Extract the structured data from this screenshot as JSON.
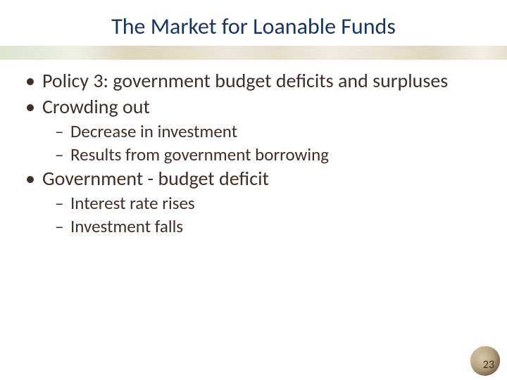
{
  "title": "The Market for Loanable Funds",
  "colors": {
    "title": "#17365d",
    "body": "#3d3028",
    "background": "#ffffff"
  },
  "typography": {
    "title_fontsize": 32,
    "l1_fontsize": 28,
    "l2_fontsize": 25,
    "font_family": "Calibri"
  },
  "bullets": [
    {
      "level": 1,
      "text": "Policy 3: government budget deficits and surpluses"
    },
    {
      "level": 1,
      "text": "Crowding out"
    },
    {
      "level": 2,
      "text": "Decrease in investment"
    },
    {
      "level": 2,
      "text": "Results from government borrowing"
    },
    {
      "level": 1,
      "text": "Government - budget deficit"
    },
    {
      "level": 2,
      "text": "Interest rate rises"
    },
    {
      "level": 2,
      "text": "Investment falls"
    }
  ],
  "markers": {
    "l1": "•",
    "l2": "–"
  },
  "page_number": "23"
}
